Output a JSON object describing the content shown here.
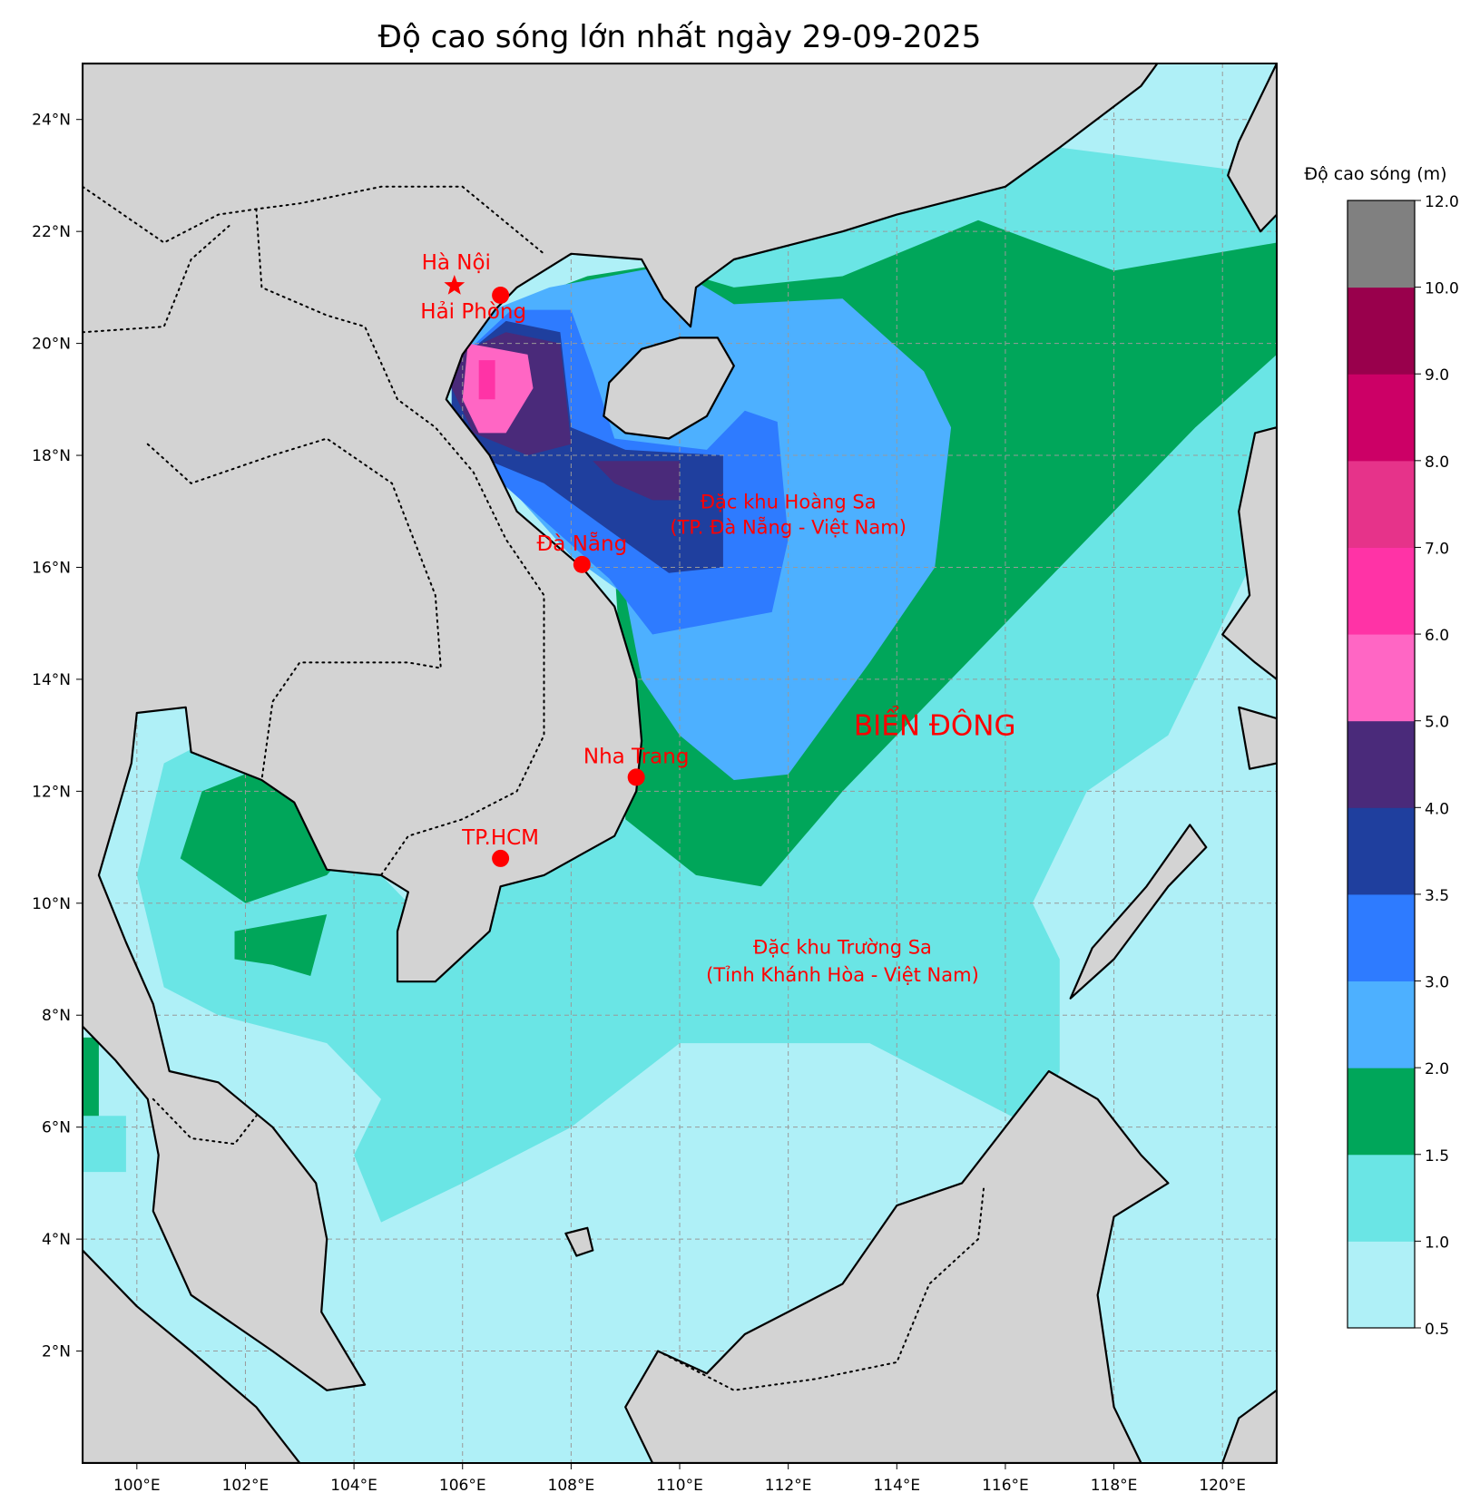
{
  "title": "Độ cao sóng lớn nhất ngày 29-09-2025",
  "colorbar": {
    "label": "Độ cao sóng (m)",
    "ticks": [
      "0.5",
      "1.0",
      "1.5",
      "2.0",
      "3.0",
      "3.5",
      "4.0",
      "5.0",
      "6.0",
      "7.0",
      "8.0",
      "9.0",
      "10.0",
      "12.0"
    ],
    "colors": [
      "#aff0f7",
      "#6ae5e5",
      "#00a65a",
      "#4db0ff",
      "#2e7bff",
      "#1f3f9e",
      "#4a2a7a",
      "#ff66c4",
      "#ff33a6",
      "#e6338a",
      "#cc0066",
      "#99004c",
      "#808080"
    ]
  },
  "axes": {
    "lon_ticks": [
      "100°E",
      "102°E",
      "104°E",
      "106°E",
      "108°E",
      "110°E",
      "112°E",
      "114°E",
      "116°E",
      "118°E",
      "120°E"
    ],
    "lat_ticks": [
      "2°N",
      "4°N",
      "6°N",
      "8°N",
      "10°N",
      "12°N",
      "14°N",
      "16°N",
      "18°N",
      "20°N",
      "22°N",
      "24°N"
    ]
  },
  "cities": [
    {
      "name": "Hà Nội",
      "marker": "star"
    },
    {
      "name": "Hải Phòng",
      "marker": "dot"
    },
    {
      "name": "Đà Nẵng",
      "marker": "dot"
    },
    {
      "name": "Nha Trang",
      "marker": "dot"
    },
    {
      "name": "TP.HCM",
      "marker": "dot"
    }
  ],
  "regions": {
    "hoang_sa_1": "Đặc khu Hoàng Sa",
    "hoang_sa_2": "(TP. Đà Nẵng - Việt Nam)",
    "truong_sa_1": "Đặc khu Trường Sa",
    "truong_sa_2": "(Tỉnh Khánh Hòa - Việt Nam)",
    "sea": "BIỂN ĐÔNG"
  },
  "colors": {
    "land": "#d3d3d3",
    "marker": "#ff0000"
  }
}
